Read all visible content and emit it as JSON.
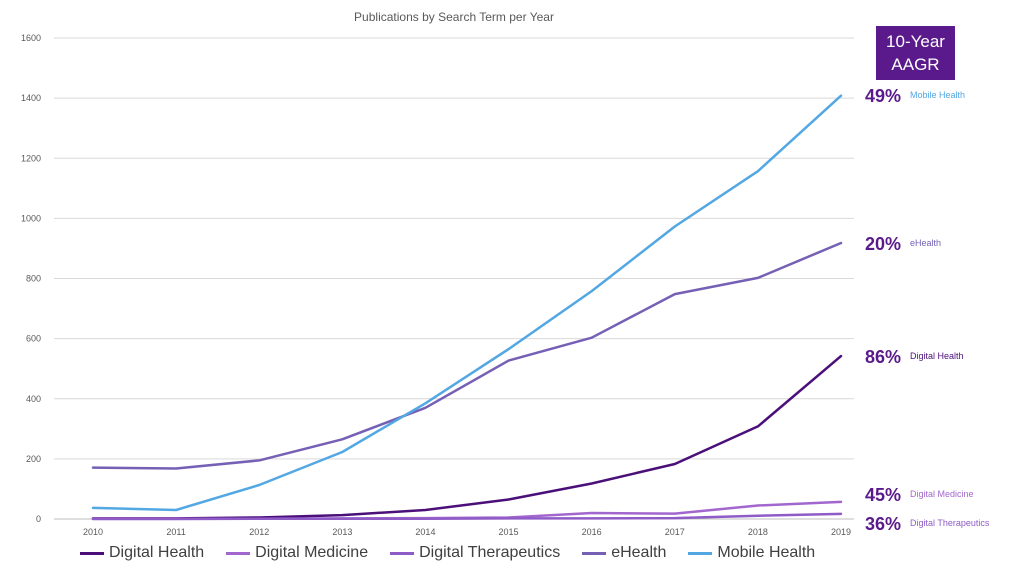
{
  "chart_data": {
    "type": "line",
    "title": "Publications by Search Term per Year",
    "xlabel": "",
    "ylabel": "",
    "ylim": [
      0,
      1600
    ],
    "yticks": [
      0,
      200,
      400,
      600,
      800,
      1000,
      1200,
      1400,
      1600
    ],
    "x": [
      "2010",
      "2011",
      "2012",
      "2013",
      "2014",
      "2015",
      "2016",
      "2017",
      "2018",
      "2019"
    ],
    "grid": true,
    "legend_position": "bottom",
    "series": [
      {
        "name": "Digital Health",
        "color": "#4b0f7a",
        "values": [
          2,
          2,
          5,
          13,
          30,
          65,
          118,
          183,
          308,
          542
        ]
      },
      {
        "name": "Digital Medicine",
        "color": "#a267cf",
        "values": [
          1,
          1,
          1,
          2,
          3,
          5,
          20,
          18,
          45,
          57
        ]
      },
      {
        "name": "Digital Therapeutics",
        "color": "#8f5cc7",
        "values": [
          0,
          0,
          1,
          1,
          1,
          2,
          2,
          3,
          11,
          17
        ]
      },
      {
        "name": "eHealth",
        "color": "#7560b5",
        "values": [
          171,
          168,
          195,
          265,
          370,
          527,
          603,
          748,
          802,
          918
        ]
      },
      {
        "name": "Mobile Health",
        "color": "#53a7e3",
        "values": [
          37,
          30,
          113,
          223,
          385,
          565,
          758,
          973,
          1157,
          1408
        ]
      }
    ],
    "annotations": {
      "box_line1": "10-Year",
      "box_line2": "AAGR",
      "box_color": "#5a1a8c",
      "items": [
        {
          "percent": "49%",
          "label": "Mobile Health",
          "label_color": "#53a7e3"
        },
        {
          "percent": "20%",
          "label": "eHealth",
          "label_color": "#7560b5"
        },
        {
          "percent": "86%",
          "label": "Digital Health",
          "label_color": "#4b0f7a"
        },
        {
          "percent": "45%",
          "label": "Digital Medicine",
          "label_color": "#a267cf"
        },
        {
          "percent": "36%",
          "label": "Digital Therapeutics",
          "label_color": "#8f5cc7"
        }
      ]
    }
  }
}
